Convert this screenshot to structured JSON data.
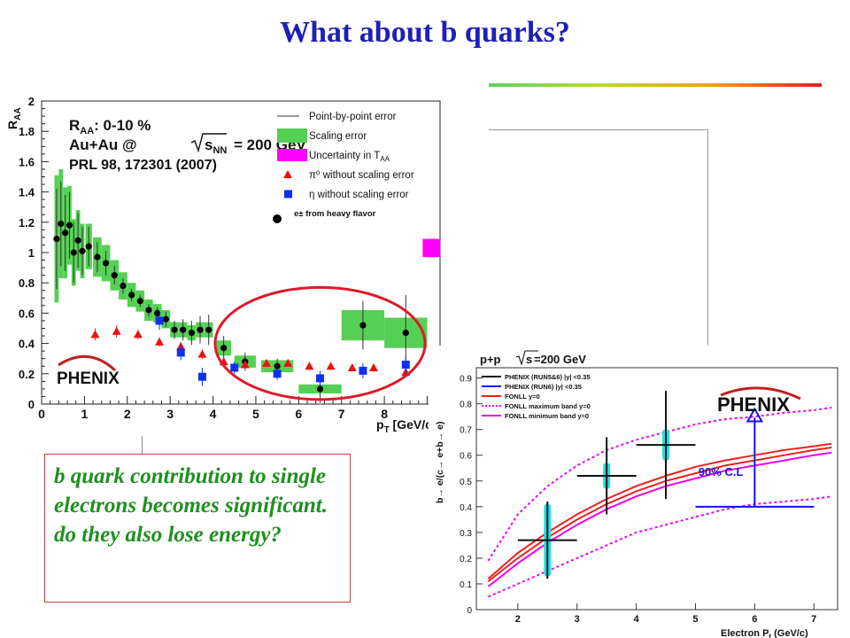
{
  "slide": {
    "title": "What about b quarks?",
    "callout": "b quark contribution to single electrons becomes significant. do they also lose energy?"
  },
  "colors": {
    "title": "#1f1fb8",
    "callout_text": "#1f8f1f",
    "callout_border": "#c84040",
    "scaling_error": "#55d055",
    "taa_uncertainty": "#ff00ff",
    "pi0": "#ee1010",
    "eta": "#1030ee",
    "heavy_flavor": "#000000",
    "highlight_ellipse": "#dd1a2a",
    "fonll": "#ee2020",
    "fonll_band": "#ee00ee",
    "phenix_run6": "#1010ee",
    "cl_arrow": "#1010ee",
    "run_bar": "#22e0e0"
  },
  "chart_data": [
    {
      "type": "scatter",
      "ylabel": "R_AA",
      "xlabel": "p_T [GeV/c]",
      "xlim": [
        0,
        9.3
      ],
      "ylim": [
        0,
        2
      ],
      "x_ticks": [
        "0",
        "1",
        "2",
        "3",
        "4",
        "5",
        "6",
        "7",
        "8"
      ],
      "y_ticks": [
        "0",
        "0.2",
        "0.4",
        "0.6",
        "0.8",
        "1",
        "1.2",
        "1.4",
        "1.6",
        "1.8",
        "2"
      ],
      "annotations": {
        "raa_line": "R_AA: 0-10 %",
        "system_pre": "Au+Au @",
        "system_sym": "s",
        "system_sub": "NN",
        "system_post": "= 200 GeV",
        "reference": "PRL 98, 172301 (2007)",
        "logo": "PHENIX"
      },
      "legend": {
        "placement": "top-right",
        "entries": [
          {
            "symbol": "line",
            "label": "Point-by-point error"
          },
          {
            "symbol": "box-green",
            "label": "Scaling error"
          },
          {
            "symbol": "box-magenta",
            "label": "Uncertainty in T",
            "sub": "AA"
          },
          {
            "symbol": "triangle",
            "label": "π⁰ without scaling error"
          },
          {
            "symbol": "square",
            "label": "η without scaling error"
          },
          {
            "symbol": "circle",
            "label": "e± from heavy flavor"
          }
        ]
      },
      "taa_uncertainty": {
        "x": 9.1,
        "y_low": 0.97,
        "y_high": 1.09
      },
      "series": [
        {
          "name": "e± from heavy flavor",
          "marker": "circle",
          "points": [
            {
              "x": 0.35,
              "y": 1.09,
              "err": 0.33,
              "sys": 0.42
            },
            {
              "x": 0.45,
              "y": 1.19,
              "err": 0.28,
              "sys": 0.36
            },
            {
              "x": 0.55,
              "y": 1.13,
              "err": 0.25,
              "sys": 0.3
            },
            {
              "x": 0.65,
              "y": 1.18,
              "err": 0.22,
              "sys": 0.26
            },
            {
              "x": 0.75,
              "y": 1.0,
              "err": 0.2,
              "sys": 0.22
            },
            {
              "x": 0.85,
              "y": 1.08,
              "err": 0.18,
              "sys": 0.2
            },
            {
              "x": 0.95,
              "y": 1.01,
              "err": 0.16,
              "sys": 0.18
            },
            {
              "x": 1.1,
              "y": 1.04,
              "err": 0.13,
              "sys": 0.15
            },
            {
              "x": 1.3,
              "y": 0.97,
              "err": 0.1,
              "sys": 0.13
            },
            {
              "x": 1.5,
              "y": 0.93,
              "err": 0.08,
              "sys": 0.12
            },
            {
              "x": 1.7,
              "y": 0.85,
              "err": 0.06,
              "sys": 0.1
            },
            {
              "x": 1.9,
              "y": 0.78,
              "err": 0.05,
              "sys": 0.09
            },
            {
              "x": 2.1,
              "y": 0.72,
              "err": 0.04,
              "sys": 0.08
            },
            {
              "x": 2.3,
              "y": 0.68,
              "err": 0.04,
              "sys": 0.07
            },
            {
              "x": 2.5,
              "y": 0.62,
              "err": 0.04,
              "sys": 0.07
            },
            {
              "x": 2.7,
              "y": 0.6,
              "err": 0.04,
              "sys": 0.06
            },
            {
              "x": 2.9,
              "y": 0.56,
              "err": 0.05,
              "sys": 0.06
            },
            {
              "x": 3.1,
              "y": 0.49,
              "err": 0.06,
              "sys": 0.05
            },
            {
              "x": 3.3,
              "y": 0.49,
              "err": 0.07,
              "sys": 0.05
            },
            {
              "x": 3.5,
              "y": 0.47,
              "err": 0.08,
              "sys": 0.05
            },
            {
              "x": 3.7,
              "y": 0.49,
              "err": 0.09,
              "sys": 0.05
            },
            {
              "x": 3.9,
              "y": 0.49,
              "err": 0.1,
              "sys": 0.05
            },
            {
              "x": 4.25,
              "y": 0.37,
              "err": 0.08,
              "sys": 0.05
            },
            {
              "x": 4.75,
              "y": 0.28,
              "err": 0.06,
              "sys": 0.04
            },
            {
              "x": 5.5,
              "y": 0.25,
              "err": 0.05,
              "sys": 0.04
            },
            {
              "x": 6.5,
              "y": 0.1,
              "err": 0.09,
              "sys": 0.03
            },
            {
              "x": 7.5,
              "y": 0.52,
              "err": 0.16,
              "sys": 0.1
            },
            {
              "x": 8.5,
              "y": 0.47,
              "err": 0.25,
              "sys": 0.1
            }
          ]
        },
        {
          "name": "π⁰ without scaling error",
          "marker": "triangle",
          "points": [
            {
              "x": 1.25,
              "y": 0.46,
              "err": 0.04
            },
            {
              "x": 1.75,
              "y": 0.48,
              "err": 0.04
            },
            {
              "x": 2.25,
              "y": 0.46,
              "err": 0.03
            },
            {
              "x": 2.75,
              "y": 0.41,
              "err": 0.03
            },
            {
              "x": 3.25,
              "y": 0.38,
              "err": 0.03
            },
            {
              "x": 3.75,
              "y": 0.33,
              "err": 0.03
            },
            {
              "x": 4.25,
              "y": 0.28,
              "err": 0.03
            },
            {
              "x": 4.75,
              "y": 0.26,
              "err": 0.02
            },
            {
              "x": 5.25,
              "y": 0.27,
              "err": 0.02
            },
            {
              "x": 5.75,
              "y": 0.27,
              "err": 0.02
            },
            {
              "x": 6.25,
              "y": 0.25,
              "err": 0.02
            },
            {
              "x": 6.75,
              "y": 0.25,
              "err": 0.02
            },
            {
              "x": 7.25,
              "y": 0.24,
              "err": 0.02
            },
            {
              "x": 7.75,
              "y": 0.24,
              "err": 0.02
            },
            {
              "x": 8.5,
              "y": 0.21,
              "err": 0.03
            }
          ]
        },
        {
          "name": "η without scaling error",
          "marker": "square",
          "points": [
            {
              "x": 2.75,
              "y": 0.55,
              "err": 0.06
            },
            {
              "x": 3.25,
              "y": 0.34,
              "err": 0.05
            },
            {
              "x": 3.75,
              "y": 0.18,
              "err": 0.06
            },
            {
              "x": 4.5,
              "y": 0.24,
              "err": 0.04
            },
            {
              "x": 5.5,
              "y": 0.2,
              "err": 0.04
            },
            {
              "x": 6.5,
              "y": 0.17,
              "err": 0.05
            },
            {
              "x": 7.5,
              "y": 0.22,
              "err": 0.05
            },
            {
              "x": 8.5,
              "y": 0.26,
              "err": 0.06
            }
          ]
        }
      ],
      "highlight": {
        "shape": "ellipse",
        "x_center": 6.5,
        "y_center": 0.4,
        "x_radius": 2.45,
        "y_radius": 0.37
      }
    },
    {
      "type": "line",
      "title_left": "p+p",
      "title_sym": "s",
      "title_right": "=200 GeV",
      "ylabel": "b→ e/(c→ e+b→ e)",
      "xlabel": "Electron P_t (GeV/c)",
      "xlim": [
        1.3,
        7.4
      ],
      "ylim": [
        0,
        0.94
      ],
      "x_ticks": [
        "2",
        "3",
        "4",
        "5",
        "6",
        "7"
      ],
      "y_ticks": [
        "0",
        "0.1",
        "0.2",
        "0.3",
        "0.4",
        "0.5",
        "0.6",
        "0.7",
        "0.8",
        "0.9"
      ],
      "logo": "PHENIX",
      "legend": [
        {
          "label": "PHENIX (RUN5&6) |y| <0.35",
          "style": "solid",
          "color": "#111111"
        },
        {
          "label": "PHENIX (RUN6) |y| <0.35",
          "style": "solid",
          "color": "#1010ee"
        },
        {
          "label": "FONLL y=0",
          "style": "solid",
          "color": "#ee2020"
        },
        {
          "label": "FONLL maximum band y=0",
          "style": "dotted",
          "color": "#ee00ee"
        },
        {
          "label": "FONLL minimum band y=0",
          "style": "solid",
          "color": "#ee00ee"
        }
      ],
      "series": [
        {
          "name": "FONLL y=0",
          "style": "solid",
          "x": [
            1.5,
            2,
            2.5,
            3,
            3.5,
            4,
            4.5,
            5,
            5.5,
            6,
            6.5,
            7,
            7.3
          ],
          "y": [
            0.11,
            0.2,
            0.28,
            0.35,
            0.41,
            0.46,
            0.5,
            0.53,
            0.56,
            0.58,
            0.6,
            0.62,
            0.63
          ]
        },
        {
          "name": "FONLL y=0 (upper)",
          "style": "solid",
          "x": [
            1.5,
            2,
            2.5,
            3,
            3.5,
            4,
            4.5,
            5,
            5.5,
            6,
            6.5,
            7,
            7.3
          ],
          "y": [
            0.12,
            0.22,
            0.3,
            0.37,
            0.43,
            0.48,
            0.52,
            0.555,
            0.58,
            0.6,
            0.62,
            0.635,
            0.645
          ]
        },
        {
          "name": "FONLL minimum band y=0",
          "style": "solid",
          "x": [
            1.5,
            2,
            2.5,
            3,
            3.5,
            4,
            4.5,
            5,
            5.5,
            6,
            6.5,
            7,
            7.3
          ],
          "y": [
            0.09,
            0.18,
            0.26,
            0.33,
            0.39,
            0.44,
            0.48,
            0.51,
            0.54,
            0.56,
            0.58,
            0.6,
            0.61
          ]
        },
        {
          "name": "FONLL maximum band y=0",
          "style": "dotted",
          "x": [
            1.5,
            2,
            2.5,
            3,
            3.5,
            4,
            4.5,
            5,
            5.5,
            6,
            6.5,
            7,
            7.3
          ],
          "y": [
            0.19,
            0.37,
            0.48,
            0.56,
            0.62,
            0.66,
            0.69,
            0.72,
            0.74,
            0.75,
            0.765,
            0.775,
            0.785
          ]
        },
        {
          "name": "FONLL minimum (lower dotted)",
          "style": "dotted",
          "x": [
            1.5,
            2,
            2.5,
            3,
            3.5,
            4,
            4.5,
            5,
            5.5,
            6,
            6.5,
            7,
            7.3
          ],
          "y": [
            0.05,
            0.1,
            0.15,
            0.2,
            0.25,
            0.3,
            0.33,
            0.36,
            0.39,
            0.41,
            0.42,
            0.43,
            0.44
          ]
        }
      ],
      "points": [
        {
          "name": "PHENIX (RUN5&6) |y| <0.35",
          "x": 2.5,
          "y": 0.27,
          "xerr": 0.5,
          "yerr": 0.1,
          "sys": 0.14
        },
        {
          "name": "PHENIX (RUN5&6) |y| <0.35",
          "x": 3.5,
          "y": 0.52,
          "xerr": 0.5,
          "yerr": 0.1,
          "sys": 0.05
        },
        {
          "name": "PHENIX (RUN5&6) |y| <0.35",
          "x": 4.5,
          "y": 0.64,
          "xerr": 0.5,
          "yerr": 0.16,
          "sys": 0.06
        }
      ],
      "limit": {
        "label": "90% C.L",
        "x_from": 5,
        "x_to": 7,
        "y": 0.4,
        "arrow_to": 0.78
      }
    }
  ]
}
